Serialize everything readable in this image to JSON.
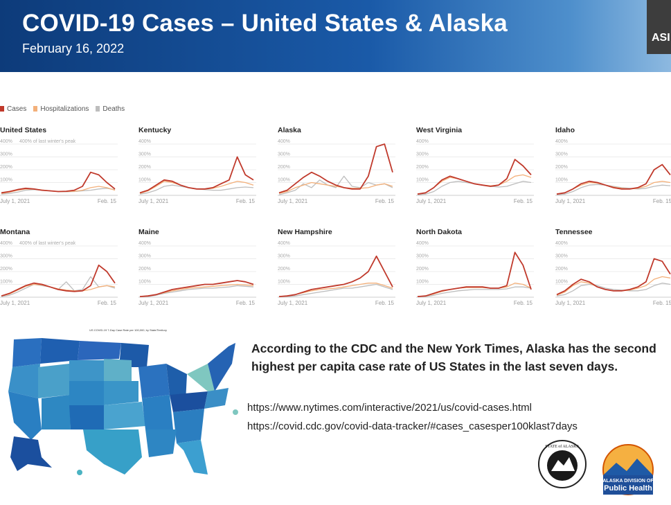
{
  "slide": {
    "title": "COVID-19 Cases – United States & Alaska",
    "date": "February 16, 2022",
    "video_label": "ASI"
  },
  "legend": [
    {
      "label": "Cases",
      "color": "#c0392b"
    },
    {
      "label": "Hospitalizations",
      "color": "#f3b07a"
    },
    {
      "label": "Deaths",
      "color": "#bdbdbd"
    }
  ],
  "y_axis_note": "400% of last winter's peak",
  "y_ticks": [
    "400%",
    "300%",
    "200%",
    "100%"
  ],
  "x_start": "July 1, 2021",
  "x_end": "Feb. 15",
  "chart_data": [
    {
      "type": "line",
      "title": "United States",
      "y_unit": "% of last winter's peak",
      "series": [
        {
          "name": "Cases",
          "values": [
            20,
            30,
            45,
            55,
            50,
            40,
            35,
            30,
            32,
            40,
            70,
            180,
            160,
            100,
            50
          ]
        },
        {
          "name": "Hospitalizations",
          "values": [
            15,
            25,
            40,
            50,
            48,
            42,
            35,
            30,
            30,
            32,
            40,
            60,
            70,
            60,
            40
          ]
        },
        {
          "name": "Deaths",
          "values": [
            10,
            15,
            25,
            40,
            45,
            40,
            35,
            30,
            28,
            30,
            35,
            40,
            50,
            55,
            45
          ]
        }
      ]
    },
    {
      "type": "line",
      "title": "Kentucky",
      "y_unit": "% of last winter's peak",
      "series": [
        {
          "name": "Cases",
          "values": [
            20,
            40,
            80,
            120,
            110,
            80,
            60,
            50,
            50,
            60,
            90,
            120,
            300,
            160,
            120
          ]
        },
        {
          "name": "Hospitalizations",
          "values": [
            15,
            35,
            70,
            110,
            100,
            80,
            60,
            50,
            48,
            55,
            70,
            90,
            110,
            100,
            80
          ]
        },
        {
          "name": "Deaths",
          "values": [
            10,
            20,
            40,
            70,
            80,
            70,
            60,
            50,
            45,
            40,
            40,
            50,
            60,
            65,
            60
          ]
        }
      ]
    },
    {
      "type": "line",
      "title": "Alaska",
      "y_unit": "% of last winter's peak",
      "series": [
        {
          "name": "Cases",
          "values": [
            20,
            40,
            90,
            140,
            180,
            150,
            110,
            80,
            60,
            50,
            50,
            150,
            380,
            400,
            180
          ]
        },
        {
          "name": "Hospitalizations",
          "values": [
            15,
            30,
            60,
            80,
            100,
            90,
            80,
            70,
            60,
            55,
            55,
            60,
            80,
            90,
            70
          ]
        },
        {
          "name": "Deaths",
          "values": [
            5,
            20,
            40,
            90,
            60,
            120,
            80,
            60,
            150,
            70,
            60,
            100,
            80,
            90,
            60
          ]
        }
      ]
    },
    {
      "type": "line",
      "title": "West Virginia",
      "y_unit": "% of last winter's peak",
      "series": [
        {
          "name": "Cases",
          "values": [
            10,
            20,
            60,
            120,
            150,
            130,
            110,
            90,
            80,
            70,
            80,
            130,
            280,
            230,
            160
          ]
        },
        {
          "name": "Hospitalizations",
          "values": [
            10,
            20,
            60,
            110,
            140,
            130,
            110,
            90,
            80,
            75,
            80,
            110,
            150,
            160,
            140
          ]
        },
        {
          "name": "Deaths",
          "values": [
            5,
            10,
            30,
            70,
            100,
            110,
            100,
            90,
            80,
            70,
            65,
            70,
            90,
            110,
            100
          ]
        }
      ]
    },
    {
      "type": "line",
      "title": "Idaho",
      "y_unit": "% of last winter's peak",
      "series": [
        {
          "name": "Cases",
          "values": [
            10,
            20,
            50,
            90,
            110,
            100,
            80,
            60,
            50,
            50,
            60,
            90,
            200,
            240,
            160
          ]
        },
        {
          "name": "Hospitalizations",
          "values": [
            10,
            20,
            50,
            80,
            100,
            95,
            80,
            65,
            55,
            50,
            55,
            70,
            100,
            110,
            100
          ]
        },
        {
          "name": "Deaths",
          "values": [
            5,
            10,
            30,
            60,
            80,
            85,
            80,
            70,
            60,
            55,
            50,
            55,
            70,
            80,
            75
          ]
        }
      ]
    },
    {
      "type": "line",
      "title": "Montana",
      "y_unit": "% of last winter's peak",
      "series": [
        {
          "name": "Cases",
          "values": [
            10,
            30,
            60,
            90,
            110,
            100,
            80,
            60,
            50,
            45,
            50,
            90,
            250,
            200,
            110
          ]
        },
        {
          "name": "Hospitalizations",
          "values": [
            10,
            25,
            55,
            85,
            100,
            95,
            80,
            65,
            55,
            50,
            50,
            60,
            80,
            90,
            80
          ]
        },
        {
          "name": "Deaths",
          "values": [
            5,
            15,
            40,
            70,
            100,
            90,
            80,
            60,
            120,
            50,
            60,
            160,
            80,
            90,
            70
          ]
        }
      ]
    },
    {
      "type": "line",
      "title": "Maine",
      "y_unit": "% of last winter's peak",
      "series": [
        {
          "name": "Cases",
          "values": [
            5,
            10,
            20,
            40,
            60,
            70,
            80,
            90,
            100,
            100,
            110,
            120,
            130,
            120,
            100
          ]
        },
        {
          "name": "Hospitalizations",
          "values": [
            5,
            10,
            20,
            35,
            50,
            60,
            70,
            75,
            80,
            85,
            90,
            95,
            100,
            95,
            90
          ]
        },
        {
          "name": "Deaths",
          "values": [
            5,
            5,
            15,
            30,
            40,
            50,
            60,
            65,
            70,
            70,
            75,
            80,
            90,
            85,
            80
          ]
        }
      ]
    },
    {
      "type": "line",
      "title": "New Hampshire",
      "y_unit": "% of last winter's peak",
      "series": [
        {
          "name": "Cases",
          "values": [
            5,
            10,
            20,
            40,
            60,
            70,
            80,
            90,
            100,
            120,
            150,
            200,
            320,
            200,
            80
          ]
        },
        {
          "name": "Hospitalizations",
          "values": [
            5,
            10,
            20,
            35,
            50,
            60,
            65,
            70,
            80,
            90,
            100,
            110,
            110,
            90,
            70
          ]
        },
        {
          "name": "Deaths",
          "values": [
            5,
            5,
            10,
            20,
            30,
            40,
            50,
            60,
            70,
            70,
            80,
            90,
            100,
            80,
            60
          ]
        }
      ]
    },
    {
      "type": "line",
      "title": "North Dakota",
      "y_unit": "% of last winter's peak",
      "series": [
        {
          "name": "Cases",
          "values": [
            5,
            10,
            30,
            50,
            60,
            70,
            80,
            80,
            80,
            70,
            70,
            90,
            350,
            250,
            60
          ]
        },
        {
          "name": "Hospitalizations",
          "values": [
            5,
            10,
            25,
            45,
            60,
            70,
            75,
            75,
            75,
            70,
            70,
            80,
            110,
            100,
            70
          ]
        },
        {
          "name": "Deaths",
          "values": [
            5,
            5,
            15,
            30,
            40,
            50,
            55,
            60,
            60,
            60,
            60,
            65,
            80,
            80,
            70
          ]
        }
      ]
    },
    {
      "type": "line",
      "title": "Tennessee",
      "y_unit": "% of last winter's peak",
      "series": [
        {
          "name": "Cases",
          "values": [
            20,
            50,
            100,
            140,
            120,
            80,
            60,
            50,
            50,
            60,
            80,
            120,
            300,
            280,
            180
          ]
        },
        {
          "name": "Hospitalizations",
          "values": [
            15,
            40,
            90,
            120,
            110,
            80,
            60,
            50,
            50,
            55,
            70,
            90,
            140,
            160,
            150
          ]
        },
        {
          "name": "Deaths",
          "values": [
            10,
            20,
            50,
            90,
            100,
            90,
            70,
            60,
            55,
            50,
            50,
            60,
            90,
            110,
            100
          ]
        }
      ]
    }
  ],
  "map": {
    "title": "US COVID-19 7-Day Case Rate per 100,000, by State/Territory"
  },
  "caption": "According to the CDC and the New York Times, Alaska has the second highest per capita case rate of US States in the last seven days.",
  "links": [
    "https://www.nytimes.com/interactive/2021/us/covid-cases.html",
    "https://covid.cdc.gov/covid-data-tracker/#cases_casesper100klast7days"
  ],
  "logos": {
    "seal_text": "STATE of ALASKA Department of Health and Social Services",
    "dph_line1": "ALASKA DIVISION OF",
    "dph_line2": "Public Health"
  },
  "colors": {
    "banner": "#1a4f94",
    "cases": "#c0392b",
    "hosp": "#f3b07a",
    "deaths": "#bdbdbd"
  }
}
